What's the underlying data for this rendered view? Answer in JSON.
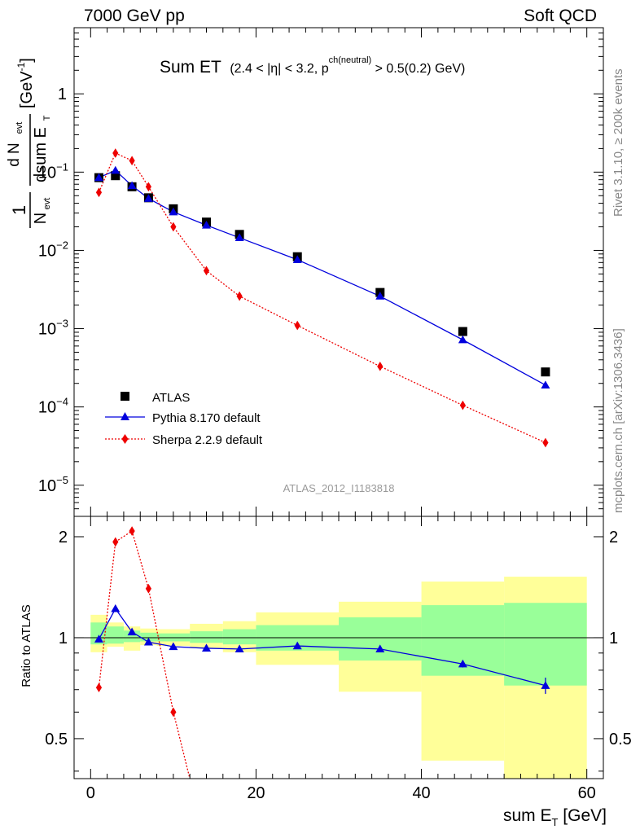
{
  "header": {
    "left": "7000 GeV pp",
    "right": "Soft QCD"
  },
  "side_labels": {
    "rivet": "Rivet 3.1.10, ≥ 200k events",
    "mcplots": "mcplots.cern.ch [arXiv:1306.3436]"
  },
  "analysis_id": "ATLAS_2012_I1183818",
  "title": {
    "main": "Sum ET",
    "cuts_a": "(2.4 < |η| < 3.2, p",
    "cuts_sup": "ch(neutral)",
    "cuts_b": " > 0.5(0.2) GeV)"
  },
  "colors": {
    "atlas": "#000000",
    "pythia": "#0000dd",
    "sherpa": "#ee0000",
    "band_inner": "#99ff99",
    "band_outer": "#ffff99"
  },
  "chart_data": [
    {
      "panel": "main",
      "type": "scatter",
      "xlim": [
        -2,
        62
      ],
      "ylim": [
        4e-06,
        7
      ],
      "log_y": true,
      "y_ticks": [
        {
          "value": 1e-05,
          "mant": "10",
          "exp": "−5"
        },
        {
          "value": 0.0001,
          "mant": "10",
          "exp": "−4"
        },
        {
          "value": 0.001,
          "mant": "10",
          "exp": "−3"
        },
        {
          "value": 0.01,
          "mant": "10",
          "exp": "−2"
        },
        {
          "value": 0.1,
          "mant": "10",
          "exp": "−1"
        },
        {
          "value": 1,
          "mant": "1",
          "exp": ""
        }
      ],
      "ylabel": {
        "frac1_num": "1",
        "frac1_den_main": "N",
        "frac1_den_sub": "evt",
        "frac2_num_main": "d N",
        "frac2_num_sub": "evt",
        "frac2_den_main": "dsum E",
        "frac2_den_sub": "T",
        "unit_main": "[GeV",
        "unit_sup": "-1",
        "unit_end": "]"
      },
      "legend": {
        "position": "lower-left",
        "atlas": "ATLAS",
        "pythia": "Pythia 8.170 default",
        "sherpa": "Sherpa 2.2.9 default"
      },
      "series": [
        {
          "name": "ATLAS",
          "x": [
            1,
            3,
            5,
            7,
            10,
            14,
            18,
            25,
            35,
            45,
            55
          ],
          "y": [
            0.085,
            0.09,
            0.065,
            0.047,
            0.034,
            0.023,
            0.016,
            0.0083,
            0.0029,
            0.00092,
            0.00028
          ]
        },
        {
          "name": "Pythia 8.170 default",
          "x": [
            1,
            3,
            5,
            7,
            10,
            14,
            18,
            25,
            35,
            45,
            55
          ],
          "y": [
            0.085,
            0.105,
            0.067,
            0.046,
            0.031,
            0.021,
            0.0145,
            0.0076,
            0.0026,
            0.00072,
            0.00019
          ]
        },
        {
          "name": "Sherpa 2.2.9 default",
          "x": [
            1,
            3,
            5,
            7,
            10,
            14,
            18,
            25,
            35,
            45,
            55
          ],
          "y": [
            0.055,
            0.175,
            0.14,
            0.065,
            0.02,
            0.0055,
            0.0026,
            0.0011,
            0.00033,
            0.000105,
            3.5e-05
          ]
        }
      ]
    },
    {
      "panel": "ratio",
      "type": "line",
      "xlim": [
        -2,
        62
      ],
      "ylim": [
        0.38,
        2.3
      ],
      "log_y": true,
      "ylabel": "Ratio to ATLAS",
      "xlabel_main": "sum E",
      "xlabel_sub": "T",
      "xlabel_unit": " [GeV]",
      "x_ticks": [
        0,
        20,
        40,
        60
      ],
      "x_tick_labels": [
        "0",
        "20",
        "40",
        "60"
      ],
      "y_ticks": [
        0.5,
        1,
        2
      ],
      "y_tick_labels": [
        "0.5",
        "1",
        "2"
      ],
      "bins": [
        [
          0,
          2
        ],
        [
          2,
          4
        ],
        [
          4,
          6
        ],
        [
          6,
          8
        ],
        [
          8,
          12
        ],
        [
          12,
          16
        ],
        [
          16,
          20
        ],
        [
          20,
          30
        ],
        [
          30,
          40
        ],
        [
          40,
          50
        ],
        [
          50,
          60
        ]
      ],
      "band_inner": [
        [
          0.955,
          1.11
        ],
        [
          0.96,
          1.08
        ],
        [
          0.97,
          1.05
        ],
        [
          0.975,
          1.035
        ],
        [
          0.975,
          1.03
        ],
        [
          0.965,
          1.045
        ],
        [
          0.955,
          1.06
        ],
        [
          0.915,
          1.09
        ],
        [
          0.855,
          1.15
        ],
        [
          0.77,
          1.25
        ],
        [
          0.72,
          1.27
        ]
      ],
      "band_outer": [
        [
          0.905,
          1.17
        ],
        [
          0.94,
          1.11
        ],
        [
          0.915,
          1.08
        ],
        [
          0.95,
          1.065
        ],
        [
          0.945,
          1.06
        ],
        [
          0.93,
          1.1
        ],
        [
          0.905,
          1.12
        ],
        [
          0.83,
          1.19
        ],
        [
          0.69,
          1.28
        ],
        [
          0.43,
          1.47
        ],
        [
          0.35,
          1.52
        ]
      ],
      "series": [
        {
          "name": "Pythia 8.170 default",
          "x": [
            1,
            3,
            5,
            7,
            10,
            14,
            18,
            25,
            35,
            45,
            55
          ],
          "y": [
            0.99,
            1.22,
            1.04,
            0.97,
            0.94,
            0.93,
            0.925,
            0.945,
            0.925,
            0.835,
            0.72
          ],
          "yerr": [
            0.01,
            0.015,
            0.01,
            0.01,
            0.008,
            0.008,
            0.008,
            0.008,
            0.01,
            0.02,
            0.04
          ]
        },
        {
          "name": "Sherpa 2.2.9 default",
          "x": [
            1,
            3,
            5,
            7,
            10,
            14
          ],
          "y": [
            0.71,
            1.93,
            2.08,
            1.4,
            0.6,
            0.24
          ]
        }
      ]
    }
  ]
}
